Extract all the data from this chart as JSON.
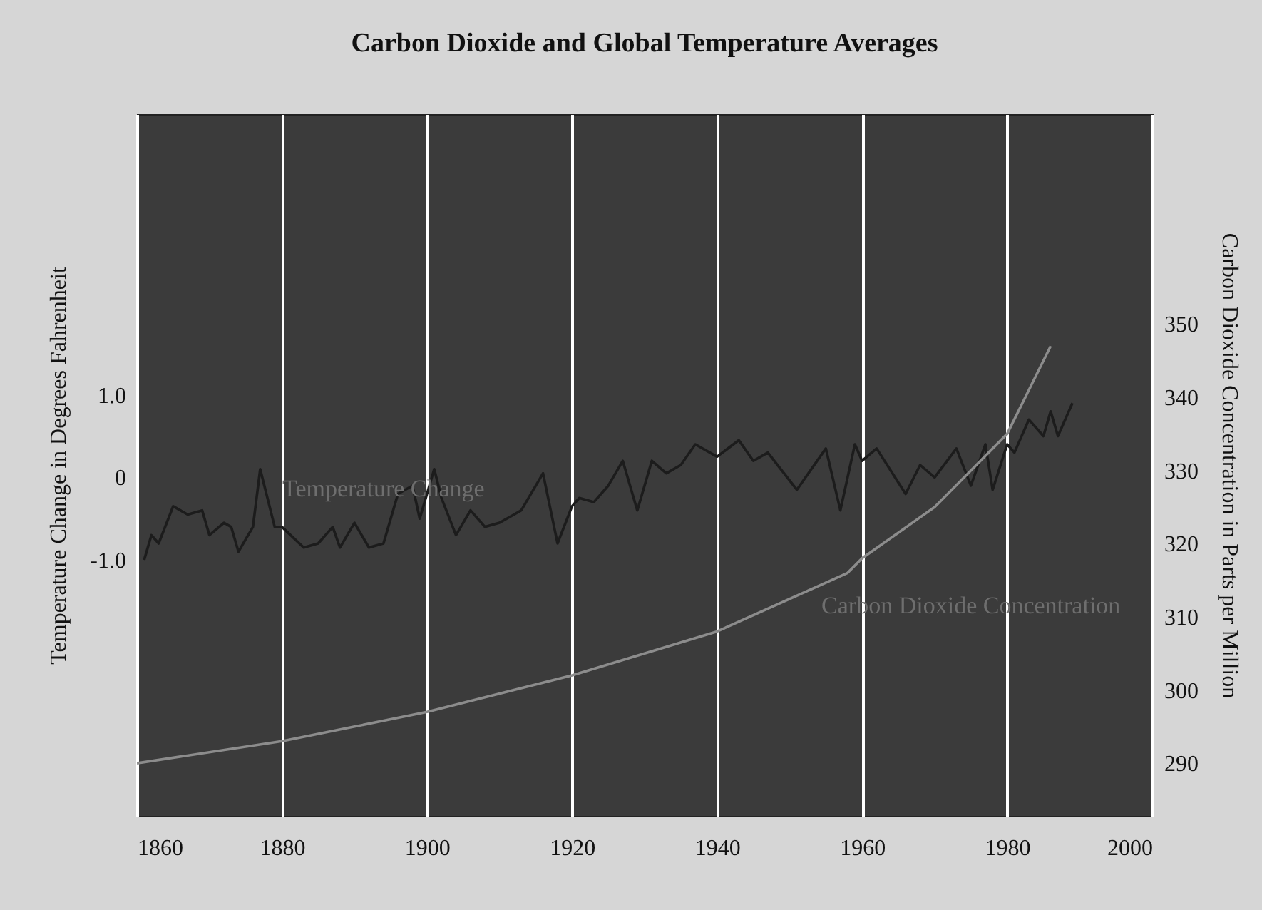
{
  "chart_data": {
    "type": "line",
    "title": "Carbon Dioxide and Global Temperature Averages",
    "ylabel": "Temperature Change in Degrees Fahrenheit",
    "y2label": "Carbon Dioxide Concentration in Parts per Million",
    "xlim": [
      1860,
      2000
    ],
    "xticks": [
      1860,
      1880,
      1900,
      1920,
      1940,
      1960,
      1980,
      2000
    ],
    "ylim": [
      -4.1,
      4.4
    ],
    "yticks": [
      {
        "value": -1,
        "label": "-1.0"
      },
      {
        "value": 0,
        "label": "0"
      },
      {
        "value": 1,
        "label": "1.0"
      }
    ],
    "y2lim": [
      282.8,
      378.7
    ],
    "y2ticks": [
      290,
      300,
      310,
      320,
      330,
      340,
      350
    ],
    "grid": "x",
    "legend": false,
    "marker": "none",
    "series": [
      {
        "name": "Temperature Change",
        "color": "#1c1c1c",
        "axis": "y",
        "x": [
          1861,
          1862,
          1863,
          1865,
          1867,
          1869,
          1870,
          1872,
          1873,
          1874,
          1876,
          1877,
          1879,
          1880,
          1883,
          1885,
          1887,
          1888,
          1890,
          1892,
          1894,
          1896,
          1898,
          1899,
          1901,
          1902,
          1904,
          1906,
          1908,
          1910,
          1912,
          1913,
          1916,
          1918,
          1920,
          1921,
          1923,
          1925,
          1927,
          1928,
          1929,
          1931,
          1933,
          1935,
          1937,
          1940,
          1943,
          1945,
          1947,
          1951,
          1953,
          1955,
          1957,
          1959,
          1960,
          1962,
          1966,
          1968,
          1970,
          1973,
          1975,
          1977,
          1978,
          1980,
          1981,
          1983,
          1985,
          1986,
          1987,
          1989
        ],
        "values": [
          -1.0,
          -0.7,
          -0.8,
          -0.35,
          -0.45,
          -0.4,
          -0.7,
          -0.55,
          -0.6,
          -0.9,
          -0.6,
          0.1,
          -0.6,
          -0.6,
          -0.85,
          -0.8,
          -0.6,
          -0.85,
          -0.55,
          -0.85,
          -0.8,
          -0.2,
          -0.1,
          -0.5,
          0.1,
          -0.25,
          -0.7,
          -0.4,
          -0.6,
          -0.55,
          -0.45,
          -0.4,
          0.05,
          -0.8,
          -0.35,
          -0.25,
          -0.3,
          -0.1,
          0.2,
          -0.1,
          -0.4,
          0.2,
          0.05,
          0.15,
          0.4,
          0.25,
          0.45,
          0.2,
          0.3,
          -0.15,
          0.1,
          0.35,
          -0.4,
          0.4,
          0.2,
          0.35,
          -0.2,
          0.15,
          0,
          0.35,
          -0.1,
          0.4,
          -0.15,
          0.4,
          0.3,
          0.7,
          0.5,
          0.8,
          0.5,
          0.9
        ]
      },
      {
        "name": "Carbon Dioxide Concentration",
        "color": "#8c8c8c",
        "axis": "y2",
        "x": [
          1860,
          1880,
          1900,
          1920,
          1940,
          1958,
          1960,
          1970,
          1975,
          1980,
          1984,
          1986
        ],
        "values": [
          290,
          293,
          297,
          302,
          308,
          316,
          318,
          325,
          330,
          335,
          343,
          347
        ]
      }
    ]
  }
}
